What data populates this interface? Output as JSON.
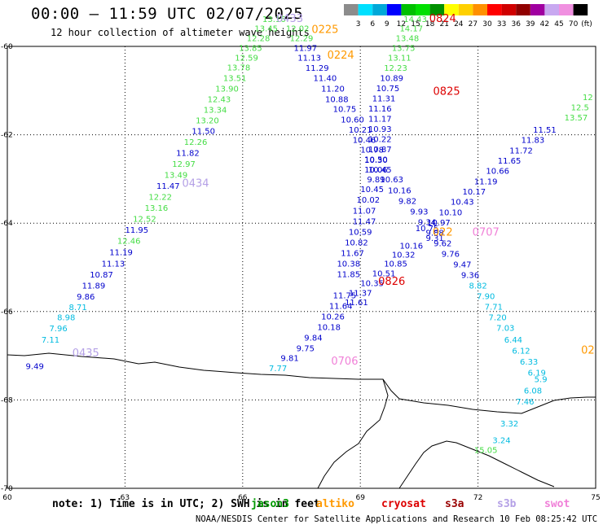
{
  "header": {
    "title": "00:00 – 11:59 UTC 02/07/2025",
    "subtitle": "12 hour collection of altimeter wave heights"
  },
  "legend": {
    "unit": "(ft)",
    "bins": [
      {
        "label": "3",
        "color": "#8c8c8c"
      },
      {
        "label": "6",
        "color": "#00e0ff"
      },
      {
        "label": "9",
        "color": "#00a8d8"
      },
      {
        "label": "12",
        "color": "#0000ff"
      },
      {
        "label": "15",
        "color": "#00c000"
      },
      {
        "label": "18",
        "color": "#00e000"
      },
      {
        "label": "21",
        "color": "#009000"
      },
      {
        "label": "24",
        "color": "#ffff00"
      },
      {
        "label": "27",
        "color": "#ffd000"
      },
      {
        "label": "30",
        "color": "#ff9000"
      },
      {
        "label": "33",
        "color": "#ff0000"
      },
      {
        "label": "36",
        "color": "#d00000"
      },
      {
        "label": "39",
        "color": "#900000"
      },
      {
        "label": "42",
        "color": "#a000a0"
      },
      {
        "label": "45",
        "color": "#c8a8f0"
      },
      {
        "label": "70",
        "color": "#f090e0"
      },
      {
        "label": "",
        "color": "#000000"
      }
    ]
  },
  "colors": {
    "blue": "#0000cc",
    "lightgreen": "#44dd44",
    "cyan": "#00bbe0",
    "orange": "#ff9900",
    "red": "#dd0000",
    "lavender": "#b4a0e6",
    "pink": "#f080d8",
    "darkgreen": "#009900"
  },
  "axes": {
    "lon_ticks": [
      "60",
      "63",
      "66",
      "69",
      "72",
      "75"
    ],
    "lat_ticks": [
      "-60",
      "-62",
      "-64",
      "-66",
      "-68",
      "-70"
    ]
  },
  "tracks": [
    {
      "id": "t1",
      "points": [
        {
          "t": "9.49",
          "c": "blue",
          "lon": 60.7,
          "lat": -67.3
        },
        {
          "t": "7.11",
          "c": "cyan",
          "lon": 61.1,
          "lat": -66.7
        },
        {
          "t": "7.96",
          "c": "cyan",
          "lon": 61.3,
          "lat": -66.45
        },
        {
          "t": "8.98",
          "c": "cyan",
          "lon": 61.5,
          "lat": -66.2
        },
        {
          "t": "8.71",
          "c": "cyan",
          "lon": 61.8,
          "lat": -65.97
        },
        {
          "t": "9.86",
          "c": "blue",
          "lon": 62.0,
          "lat": -65.73
        },
        {
          "t": "11.89",
          "c": "blue",
          "lon": 62.2,
          "lat": -65.48
        },
        {
          "t": "10.87",
          "c": "blue",
          "lon": 62.4,
          "lat": -65.23
        },
        {
          "t": "11.13",
          "c": "blue",
          "lon": 62.7,
          "lat": -64.98
        },
        {
          "t": "11.19",
          "c": "blue",
          "lon": 62.9,
          "lat": -64.72
        },
        {
          "t": "12.46",
          "c": "lightgreen",
          "lon": 63.1,
          "lat": -64.47
        },
        {
          "t": "11.95",
          "c": "blue",
          "lon": 63.3,
          "lat": -64.22
        },
        {
          "t": "12.52",
          "c": "lightgreen",
          "lon": 63.5,
          "lat": -63.97
        },
        {
          "t": "13.16",
          "c": "lightgreen",
          "lon": 63.8,
          "lat": -63.72
        },
        {
          "t": "12.22",
          "c": "lightgreen",
          "lon": 63.9,
          "lat": -63.47
        },
        {
          "t": "11.47",
          "c": "blue",
          "lon": 64.1,
          "lat": -63.22
        },
        {
          "t": "13.49",
          "c": "lightgreen",
          "lon": 64.3,
          "lat": -62.97
        },
        {
          "t": "12.97",
          "c": "lightgreen",
          "lon": 64.5,
          "lat": -62.73
        },
        {
          "t": "11.82",
          "c": "blue",
          "lon": 64.6,
          "lat": -62.48
        },
        {
          "t": "12.26",
          "c": "lightgreen",
          "lon": 64.8,
          "lat": -62.23
        },
        {
          "t": "11.50",
          "c": "blue",
          "lon": 65.0,
          "lat": -61.98
        },
        {
          "t": "13.20",
          "c": "lightgreen",
          "lon": 65.1,
          "lat": -61.74
        },
        {
          "t": "13.34",
          "c": "lightgreen",
          "lon": 65.3,
          "lat": -61.5
        },
        {
          "t": "12.43",
          "c": "lightgreen",
          "lon": 65.4,
          "lat": -61.26
        },
        {
          "t": "13.90",
          "c": "lightgreen",
          "lon": 65.6,
          "lat": -61.02
        },
        {
          "t": "13.51",
          "c": "lightgreen",
          "lon": 65.8,
          "lat": -60.78
        },
        {
          "t": "13.78",
          "c": "lightgreen",
          "lon": 65.9,
          "lat": -60.54
        },
        {
          "t": "12.59",
          "c": "lightgreen",
          "lon": 66.1,
          "lat": -60.32
        },
        {
          "t": "13.85",
          "c": "lightgreen",
          "lon": 66.2,
          "lat": -60.1
        },
        {
          "t": "12.28",
          "c": "lightgreen",
          "lon": 66.4,
          "lat": -59.88
        },
        {
          "t": "13.45",
          "c": "lightgreen",
          "lon": 66.6,
          "lat": -59.66
        },
        {
          "t": "13.16",
          "c": "lightgreen",
          "lon": 66.8,
          "lat": -59.45
        }
      ]
    },
    {
      "id": "t2",
      "points": [
        {
          "t": "12.02",
          "c": "lightgreen",
          "lon": 67.4,
          "lat": -59.66
        },
        {
          "t": "12.29",
          "c": "lightgreen",
          "lon": 67.5,
          "lat": -59.88
        },
        {
          "t": "11.97",
          "c": "blue",
          "lon": 67.6,
          "lat": -60.1
        },
        {
          "t": "11.13",
          "c": "blue",
          "lon": 67.7,
          "lat": -60.32
        },
        {
          "t": "11.29",
          "c": "blue",
          "lon": 67.9,
          "lat": -60.55
        },
        {
          "t": "11.40",
          "c": "blue",
          "lon": 68.1,
          "lat": -60.78
        },
        {
          "t": "11.20",
          "c": "blue",
          "lon": 68.3,
          "lat": -61.02
        },
        {
          "t": "10.88",
          "c": "blue",
          "lon": 68.4,
          "lat": -61.26
        },
        {
          "t": "10.75",
          "c": "blue",
          "lon": 68.6,
          "lat": -61.48
        },
        {
          "t": "10.60",
          "c": "blue",
          "lon": 68.8,
          "lat": -61.72
        },
        {
          "t": "10.21",
          "c": "blue",
          "lon": 69.0,
          "lat": -61.95
        },
        {
          "t": "10.46",
          "c": "blue",
          "lon": 69.1,
          "lat": -62.18
        },
        {
          "t": "10.78",
          "c": "blue",
          "lon": 69.3,
          "lat": -62.4
        },
        {
          "t": "10.30",
          "c": "blue",
          "lon": 69.4,
          "lat": -62.63
        },
        {
          "t": "10.06",
          "c": "blue",
          "lon": 69.4,
          "lat": -62.85
        },
        {
          "t": "9.89",
          "c": "blue",
          "lon": 69.4,
          "lat": -63.08
        },
        {
          "t": "10.63",
          "c": "blue",
          "lon": 69.8,
          "lat": -63.08
        },
        {
          "t": "10.16",
          "c": "blue",
          "lon": 70.0,
          "lat": -63.32
        },
        {
          "t": "9.82",
          "c": "blue",
          "lon": 70.2,
          "lat": -63.56
        },
        {
          "t": "9.93",
          "c": "blue",
          "lon": 70.5,
          "lat": -63.8
        },
        {
          "t": "9.34",
          "c": "blue",
          "lon": 70.7,
          "lat": -64.04
        },
        {
          "t": "9.88",
          "c": "blue",
          "lon": 70.9,
          "lat": -64.28
        },
        {
          "t": "9.62",
          "c": "blue",
          "lon": 71.1,
          "lat": -64.52
        },
        {
          "t": "9.76",
          "c": "blue",
          "lon": 71.3,
          "lat": -64.76
        },
        {
          "t": "9.47",
          "c": "blue",
          "lon": 71.6,
          "lat": -65.0
        },
        {
          "t": "9.36",
          "c": "blue",
          "lon": 71.8,
          "lat": -65.24
        },
        {
          "t": "8.82",
          "c": "cyan",
          "lon": 72.0,
          "lat": -65.48
        },
        {
          "t": "7.90",
          "c": "cyan",
          "lon": 72.2,
          "lat": -65.72
        },
        {
          "t": "7.71",
          "c": "cyan",
          "lon": 72.4,
          "lat": -65.96
        },
        {
          "t": "7.20",
          "c": "cyan",
          "lon": 72.5,
          "lat": -66.2
        },
        {
          "t": "7.03",
          "c": "cyan",
          "lon": 72.7,
          "lat": -66.44
        },
        {
          "t": "6.44",
          "c": "cyan",
          "lon": 72.9,
          "lat": -66.7
        },
        {
          "t": "6.12",
          "c": "cyan",
          "lon": 73.1,
          "lat": -66.95
        },
        {
          "t": "6.33",
          "c": "cyan",
          "lon": 73.3,
          "lat": -67.2
        },
        {
          "t": "6.19",
          "c": "cyan",
          "lon": 73.5,
          "lat": -67.45
        },
        {
          "t": "5.9",
          "c": "cyan",
          "lon": 73.6,
          "lat": -67.6
        },
        {
          "t": "6.08",
          "c": "cyan",
          "lon": 73.4,
          "lat": -67.85
        },
        {
          "t": "7.46",
          "c": "cyan",
          "lon": 73.2,
          "lat": -68.1
        },
        {
          "t": "3.32",
          "c": "cyan",
          "lon": 72.8,
          "lat": -68.6
        },
        {
          "t": "3.24",
          "c": "cyan",
          "lon": 72.6,
          "lat": -68.98
        },
        {
          "t": "15.05",
          "c": "lightgreen",
          "lon": 72.2,
          "lat": -69.2
        }
      ]
    },
    {
      "id": "t3",
      "points": [
        {
          "t": "14.43",
          "c": "lightgreen",
          "lon": 70.4,
          "lat": -59.45
        },
        {
          "t": "14.17",
          "c": "lightgreen",
          "lon": 70.3,
          "lat": -59.66
        },
        {
          "t": "13.48",
          "c": "lightgreen",
          "lon": 70.2,
          "lat": -59.88
        },
        {
          "t": "13.75",
          "c": "lightgreen",
          "lon": 70.1,
          "lat": -60.1
        },
        {
          "t": "13.11",
          "c": "lightgreen",
          "lon": 70.0,
          "lat": -60.32
        },
        {
          "t": "12.23",
          "c": "lightgreen",
          "lon": 69.9,
          "lat": -60.55
        },
        {
          "t": "10.89",
          "c": "blue",
          "lon": 69.8,
          "lat": -60.78
        },
        {
          "t": "10.75",
          "c": "blue",
          "lon": 69.7,
          "lat": -61.01
        },
        {
          "t": "11.31",
          "c": "blue",
          "lon": 69.6,
          "lat": -61.24
        },
        {
          "t": "11.16",
          "c": "blue",
          "lon": 69.5,
          "lat": -61.47
        },
        {
          "t": "11.17",
          "c": "blue",
          "lon": 69.5,
          "lat": -61.7
        },
        {
          "t": "10.93",
          "c": "blue",
          "lon": 69.5,
          "lat": -61.93
        },
        {
          "t": "10.22",
          "c": "blue",
          "lon": 69.5,
          "lat": -62.16
        },
        {
          "t": "10.87",
          "c": "blue",
          "lon": 69.5,
          "lat": -62.39
        },
        {
          "t": "10.50",
          "c": "blue",
          "lon": 69.4,
          "lat": -62.62
        },
        {
          "t": "10.45",
          "c": "blue",
          "lon": 69.5,
          "lat": -62.85
        },
        {
          "t": "10.45",
          "c": "blue",
          "lon": 69.3,
          "lat": -63.3
        },
        {
          "t": "10.02",
          "c": "blue",
          "lon": 69.2,
          "lat": -63.54
        },
        {
          "t": "11.07",
          "c": "blue",
          "lon": 69.1,
          "lat": -63.78
        },
        {
          "t": "11.47",
          "c": "blue",
          "lon": 69.1,
          "lat": -64.02
        },
        {
          "t": "10.59",
          "c": "blue",
          "lon": 69.0,
          "lat": -64.26
        },
        {
          "t": "10.82",
          "c": "blue",
          "lon": 68.9,
          "lat": -64.5
        },
        {
          "t": "11.67",
          "c": "blue",
          "lon": 68.8,
          "lat": -64.74
        },
        {
          "t": "10.38",
          "c": "blue",
          "lon": 68.7,
          "lat": -64.98
        },
        {
          "t": "11.85",
          "c": "blue",
          "lon": 68.7,
          "lat": -65.22
        },
        {
          "t": "11.75",
          "c": "blue",
          "lon": 68.6,
          "lat": -65.7
        },
        {
          "t": "11.64",
          "c": "blue",
          "lon": 68.5,
          "lat": -65.94
        },
        {
          "t": "10.26",
          "c": "blue",
          "lon": 68.3,
          "lat": -66.18
        },
        {
          "t": "10.18",
          "c": "blue",
          "lon": 68.2,
          "lat": -66.42
        },
        {
          "t": "9.84",
          "c": "blue",
          "lon": 67.8,
          "lat": -66.66
        },
        {
          "t": "9.75",
          "c": "blue",
          "lon": 67.6,
          "lat": -66.9
        },
        {
          "t": "9.81",
          "c": "blue",
          "lon": 67.2,
          "lat": -67.12
        },
        {
          "t": "7.77",
          "c": "cyan",
          "lon": 66.9,
          "lat": -67.35
        }
      ]
    },
    {
      "id": "t4",
      "points": [
        {
          "t": "12.5",
          "c": "lightgreen",
          "lon": 74.6,
          "lat": -61.45
        },
        {
          "t": "12",
          "c": "lightgreen",
          "lon": 74.8,
          "lat": -61.22
        },
        {
          "t": "13.57",
          "c": "lightgreen",
          "lon": 74.5,
          "lat": -61.68
        },
        {
          "t": "11.51",
          "c": "blue",
          "lon": 73.7,
          "lat": -61.95
        },
        {
          "t": "11.83",
          "c": "blue",
          "lon": 73.4,
          "lat": -62.18
        },
        {
          "t": "11.72",
          "c": "blue",
          "lon": 73.1,
          "lat": -62.42
        },
        {
          "t": "11.65",
          "c": "blue",
          "lon": 72.8,
          "lat": -62.65
        },
        {
          "t": "10.66",
          "c": "blue",
          "lon": 72.5,
          "lat": -62.88
        },
        {
          "t": "11.19",
          "c": "blue",
          "lon": 72.2,
          "lat": -63.12
        },
        {
          "t": "10.17",
          "c": "blue",
          "lon": 71.9,
          "lat": -63.35
        },
        {
          "t": "10.43",
          "c": "blue",
          "lon": 71.6,
          "lat": -63.58
        },
        {
          "t": "10.10",
          "c": "blue",
          "lon": 71.3,
          "lat": -63.82
        },
        {
          "t": "10.97",
          "c": "blue",
          "lon": 71.0,
          "lat": -64.05
        },
        {
          "t": "10.75",
          "c": "blue",
          "lon": 70.7,
          "lat": -64.18
        },
        {
          "t": "9.31",
          "c": "blue",
          "lon": 70.9,
          "lat": -64.4
        },
        {
          "t": "10.16",
          "c": "blue",
          "lon": 70.3,
          "lat": -64.58
        },
        {
          "t": "10.32",
          "c": "blue",
          "lon": 70.1,
          "lat": -64.78
        },
        {
          "t": "10.85",
          "c": "blue",
          "lon": 69.9,
          "lat": -64.98
        },
        {
          "t": "10.51",
          "c": "blue",
          "lon": 69.6,
          "lat": -65.2
        },
        {
          "t": "10.35",
          "c": "blue",
          "lon": 69.3,
          "lat": -65.42
        },
        {
          "t": "11.37",
          "c": "blue",
          "lon": 69.0,
          "lat": -65.64
        },
        {
          "t": "11.61",
          "c": "blue",
          "lon": 68.9,
          "lat": -65.86
        }
      ]
    }
  ],
  "time_labels": [
    {
      "t": "0433",
      "c": "lavender",
      "lon": 67.2,
      "lat": -59.45
    },
    {
      "t": "0225",
      "c": "orange",
      "lon": 68.1,
      "lat": -59.7
    },
    {
      "t": "0224",
      "c": "orange",
      "lon": 68.5,
      "lat": -60.28
    },
    {
      "t": "0434",
      "c": "lavender",
      "lon": 64.8,
      "lat": -63.18
    },
    {
      "t": "0435",
      "c": "lavender",
      "lon": 62.0,
      "lat": -67.02
    },
    {
      "t": "0706",
      "c": "pink",
      "lon": 68.6,
      "lat": -67.2
    },
    {
      "t": "0707",
      "c": "pink",
      "lon": 72.2,
      "lat": -64.28
    },
    {
      "t": "022",
      "c": "orange",
      "lon": 71.1,
      "lat": -64.28
    },
    {
      "t": "0825",
      "c": "red",
      "lon": 71.2,
      "lat": -61.1
    },
    {
      "t": "0824",
      "c": "red",
      "lon": 71.1,
      "lat": -59.45
    },
    {
      "t": "0826",
      "c": "red",
      "lon": 69.8,
      "lat": -65.4
    },
    {
      "t": "02",
      "c": "orange",
      "lon": 74.8,
      "lat": -66.95
    }
  ],
  "footer": {
    "note_prefix": "note: 1) Time is in UTC; 2) SWH is in feet",
    "satellites": [
      {
        "name": "jason3",
        "c": "darkgreen"
      },
      {
        "name": "altiko",
        "c": "orange"
      },
      {
        "name": "cryosat",
        "c": "red"
      },
      {
        "name": "s3a",
        "c": "#990000"
      },
      {
        "name": "s3b",
        "c": "lavender"
      },
      {
        "name": "swot",
        "c": "pink"
      }
    ],
    "credit": "NOAA/NESDIS Center for Satellite Applications and Research    10 Feb 08:25:42 UTC 2025"
  }
}
